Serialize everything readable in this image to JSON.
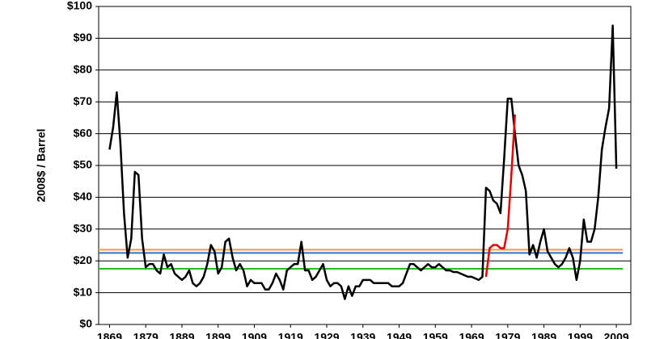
{
  "chart_data": {
    "type": "line",
    "y_label": "2008$ / Barrel",
    "x": [
      1869,
      1870,
      1871,
      1872,
      1873,
      1874,
      1875,
      1876,
      1877,
      1878,
      1879,
      1880,
      1881,
      1882,
      1883,
      1884,
      1885,
      1886,
      1887,
      1888,
      1889,
      1890,
      1891,
      1892,
      1893,
      1894,
      1895,
      1896,
      1897,
      1898,
      1899,
      1900,
      1901,
      1902,
      1903,
      1904,
      1905,
      1906,
      1907,
      1908,
      1909,
      1910,
      1911,
      1912,
      1913,
      1914,
      1915,
      1916,
      1917,
      1918,
      1919,
      1920,
      1921,
      1922,
      1923,
      1924,
      1925,
      1926,
      1927,
      1928,
      1929,
      1930,
      1931,
      1932,
      1933,
      1934,
      1935,
      1936,
      1937,
      1938,
      1939,
      1940,
      1941,
      1942,
      1943,
      1944,
      1945,
      1946,
      1947,
      1948,
      1949,
      1950,
      1951,
      1952,
      1953,
      1954,
      1955,
      1956,
      1957,
      1958,
      1959,
      1960,
      1961,
      1962,
      1963,
      1964,
      1965,
      1966,
      1967,
      1968,
      1969,
      1970,
      1971,
      1972,
      1973,
      1974,
      1975,
      1976,
      1977,
      1978,
      1979,
      1980,
      1981,
      1982,
      1983,
      1984,
      1985,
      1986,
      1987,
      1988,
      1989,
      1990,
      1991,
      1992,
      1993,
      1994,
      1995,
      1996,
      1997,
      1998,
      1999,
      2000,
      2001,
      2002,
      2003,
      2004,
      2005,
      2006,
      2007,
      2008,
      2009
    ],
    "series": [
      {
        "color": "#000000",
        "values": [
          55,
          62,
          73,
          57,
          35,
          21,
          27,
          48,
          47,
          27,
          18,
          19,
          19,
          17,
          16,
          22,
          18,
          19,
          16,
          15,
          14,
          15,
          17,
          13,
          12,
          13,
          15,
          19,
          25,
          23,
          16,
          18,
          26,
          27,
          21,
          17,
          19,
          17,
          12,
          14,
          13,
          13,
          13,
          11,
          11,
          13,
          16,
          14,
          11,
          17,
          18,
          19,
          19,
          26,
          17,
          17,
          14,
          15,
          17,
          19,
          14,
          12,
          13,
          13,
          12,
          8,
          12,
          9,
          12,
          12,
          14,
          14,
          14,
          13,
          13,
          13,
          13,
          13,
          12,
          12,
          12,
          13,
          16,
          19,
          19,
          18,
          17,
          18,
          19,
          18,
          18,
          19,
          18,
          17,
          17,
          16.5,
          16.5,
          16,
          15.5,
          15,
          15,
          14.5,
          14,
          15,
          43,
          42,
          39,
          38,
          35,
          52,
          71,
          71,
          60,
          50,
          47,
          42,
          22,
          25,
          21,
          26,
          30,
          23,
          21,
          19,
          18,
          19,
          21,
          24,
          21,
          14,
          20,
          33,
          26,
          26,
          30,
          40,
          55,
          62,
          68,
          94,
          49
        ]
      },
      {
        "color": "#e00000",
        "values": [
          null,
          null,
          null,
          null,
          null,
          null,
          null,
          null,
          null,
          null,
          null,
          null,
          null,
          null,
          null,
          null,
          null,
          null,
          null,
          null,
          null,
          null,
          null,
          null,
          null,
          null,
          null,
          null,
          null,
          null,
          null,
          null,
          null,
          null,
          null,
          null,
          null,
          null,
          null,
          null,
          null,
          null,
          null,
          null,
          null,
          null,
          null,
          null,
          null,
          null,
          null,
          null,
          null,
          null,
          null,
          null,
          null,
          null,
          null,
          null,
          null,
          null,
          null,
          null,
          null,
          null,
          null,
          null,
          null,
          null,
          null,
          null,
          null,
          null,
          null,
          null,
          null,
          null,
          null,
          null,
          null,
          null,
          null,
          null,
          null,
          null,
          null,
          null,
          null,
          null,
          null,
          null,
          null,
          null,
          null,
          null,
          null,
          null,
          null,
          null,
          null,
          null,
          null,
          null,
          15,
          24,
          25,
          25,
          24,
          24,
          30,
          47,
          66,
          null,
          null,
          null,
          null,
          null,
          null,
          null,
          null,
          null,
          null,
          null,
          null,
          null,
          null,
          null,
          null,
          null,
          null,
          null,
          null,
          null,
          null,
          null,
          null,
          null,
          null,
          null,
          null
        ]
      }
    ],
    "reference_lines": [
      {
        "value": 23.5,
        "color": "#f0a030"
      },
      {
        "value": 22.5,
        "color": "#3070d0"
      },
      {
        "value": 17.5,
        "color": "#20c020"
      }
    ],
    "xlim": [
      1866,
      2013
    ],
    "ylim": [
      0,
      100
    ],
    "xticks": [
      1869,
      1879,
      1889,
      1899,
      1909,
      1919,
      1929,
      1939,
      1949,
      1959,
      1969,
      1979,
      1989,
      1999,
      2009
    ],
    "yticks": [
      {
        "value": 0,
        "label": "$0"
      },
      {
        "value": 10,
        "label": "$10"
      },
      {
        "value": 20,
        "label": "$20"
      },
      {
        "value": 30,
        "label": "$30"
      },
      {
        "value": 40,
        "label": "$40"
      },
      {
        "value": 50,
        "label": "$50"
      },
      {
        "value": 60,
        "label": "$60"
      },
      {
        "value": 70,
        "label": "$70"
      },
      {
        "value": 80,
        "label": "$80"
      },
      {
        "value": 90,
        "label": "$90"
      },
      {
        "value": 100,
        "label": "$100"
      }
    ],
    "grid": true
  }
}
